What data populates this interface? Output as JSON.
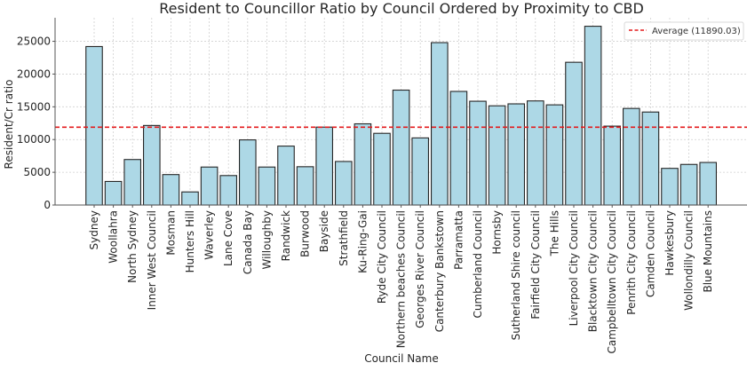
{
  "chart_data": {
    "type": "bar",
    "title": "Resident to Councillor Ratio by Council Ordered by Proximity to CBD",
    "xlabel": "Council Name",
    "ylabel": "Resident/Cr ratio",
    "ylim": [
      0,
      28600
    ],
    "yticks": [
      0,
      5000,
      10000,
      15000,
      20000,
      25000
    ],
    "grid": true,
    "legend_position": "top-right",
    "bar_color": "#add8e6",
    "bar_edge_color": "#262626",
    "categories": [
      "Sydney",
      "Woollahra",
      "North Sydney",
      "Inner West Council",
      "Mosman",
      "Hunters Hill",
      "Waverley",
      "Lane Cove",
      "Canada Bay",
      "Willoughby",
      "Randwick",
      "Burwood",
      "Bayside",
      "Strathfield",
      "Ku-Ring-Gai",
      "Ryde City Council",
      "Northern beaches Council",
      "Georges River Council",
      "Canterbury Bankstown",
      "Parramatta",
      "Cumberland Council",
      "Hornsby",
      "Sutherland Shire council",
      "Fairfield City Council",
      "The Hills",
      "Liverpool City Council",
      "Blacktown City Council",
      "Campbelltown City Council",
      "Penrith City Council",
      "Camden Council",
      "Hawkesbury",
      "Wollondilly Council",
      "Blue Mountains"
    ],
    "values": [
      24200,
      3600,
      6950,
      12150,
      4650,
      2000,
      5800,
      4500,
      9950,
      5800,
      9000,
      5850,
      11900,
      6650,
      12400,
      10950,
      17550,
      10250,
      24800,
      17350,
      15850,
      15150,
      15450,
      15900,
      15300,
      21800,
      27300,
      12050,
      14750,
      14200,
      5600,
      6200,
      6500
    ],
    "average_line": {
      "value": 11890.03,
      "label": "Average (11890.03)",
      "color": "#e41a1c",
      "style": "dashed"
    }
  }
}
